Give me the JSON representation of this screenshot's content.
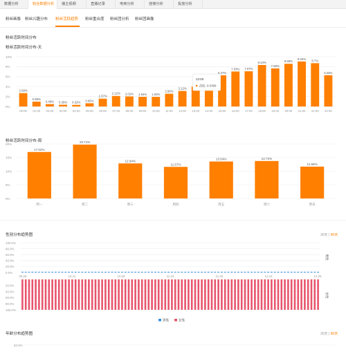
{
  "top_tabs": [
    "数据分析",
    "粉丝数据分析",
    "播主视频",
    "直播记录",
    "电商分析",
    "挂榜分析",
    "投放分析"
  ],
  "top_tab_active": 1,
  "sub_tabs": [
    "粉丝画像",
    "粉丝兴趣分布",
    "粉丝活跃趋势",
    "粉丝重合度",
    "粉丝团分析",
    "粉丝团画像"
  ],
  "sub_tab_active": 2,
  "section_heading": "粉丝活跃时间分布",
  "colors": {
    "accent": "#ff7f00",
    "male": "#3b8fe5",
    "female": "#e8546c",
    "grid": "#eeeeee"
  },
  "tooltip": {
    "time": "13:00",
    "series": "占比",
    "value": "0.0399"
  },
  "range_options": {
    "d30": "30天",
    "sep": "|",
    "d90": "90天"
  },
  "gender_legend": {
    "male": "男性",
    "female": "女性"
  },
  "age_y_top": "50.0%",
  "chart_data": [
    {
      "type": "bar",
      "title": "粉丝活跃时间分布-天",
      "categories": [
        "00:00",
        "01:00",
        "02:00",
        "03:00",
        "04:00",
        "05:00",
        "06:00",
        "07:00",
        "08:00",
        "09:00",
        "10:00",
        "11:00",
        "12:00",
        "13:00",
        "14:00",
        "15:00",
        "16:00",
        "17:00",
        "18:00",
        "19:00",
        "20:00",
        "21:00",
        "22:00",
        "23:00"
      ],
      "values": [
        2.69,
        0.98,
        0.48,
        0.35,
        0.32,
        0.65,
        1.57,
        2.12,
        2.02,
        1.94,
        1.93,
        2.56,
        3.12,
        3.99,
        4.0,
        6.27,
        7.03,
        7.07,
        8.34,
        7.65,
        8.58,
        9.04,
        8.7,
        6.28
      ],
      "labels": [
        "2.69%",
        "0.98%",
        "0.48%",
        "0.35%",
        "0.32%",
        "0.65%",
        "1.57%",
        "2.12%",
        "2.02%",
        "1.94%",
        "1.93%",
        "2.56%",
        "3.12%",
        "",
        "4.00%",
        "6.27%",
        "7.03%",
        "7.07%",
        "8.34%",
        "7.65%",
        "8.58%",
        "9.04%",
        "8.7%",
        "6.28%"
      ],
      "y_ticks": [
        "0%",
        "2%",
        "4%",
        "6%",
        "8%",
        "10%"
      ],
      "ylim": [
        0,
        10
      ],
      "highlight_index": 13
    },
    {
      "type": "bar",
      "title": "粉丝活跃时间分布-周",
      "categories": [
        "周一",
        "周二",
        "周三",
        "周四",
        "周五",
        "周六",
        "周日"
      ],
      "values": [
        17.02,
        19.71,
        12.84,
        11.57,
        13.54,
        13.72,
        11.66
      ],
      "labels": [
        "17.02%",
        "19.71%",
        "12.84%",
        "11.57%",
        "13.54%",
        "13.72%",
        "11.66%"
      ],
      "y_ticks": [
        "0%",
        "5%",
        "10%",
        "15%",
        "20%"
      ],
      "ylim": [
        0,
        20
      ]
    },
    {
      "type": "bar",
      "title": "性别分布趋势图",
      "x_ticks": [
        "09.26",
        "10.11",
        "10.26",
        "11.10",
        "11.25",
        "12.10",
        "12.25"
      ],
      "y_ticks_top": [
        "100.0%",
        "80.0%",
        "60.0%",
        "40.0%",
        "20.0%",
        "0.0%"
      ],
      "y_ticks_bottom": [
        "20.0%",
        "40.0%",
        "60.0%",
        "80.0%",
        "100.0%"
      ],
      "series": [
        {
          "name": "男性",
          "value": 0.0
        },
        {
          "name": "女性",
          "value": 100.0
        }
      ],
      "bar_count": 90,
      "side_labels": [
        "男性",
        "女性"
      ]
    },
    {
      "type": "bar",
      "title": "年龄分布趋势图",
      "y_ticks": [
        "50.0%"
      ]
    }
  ]
}
